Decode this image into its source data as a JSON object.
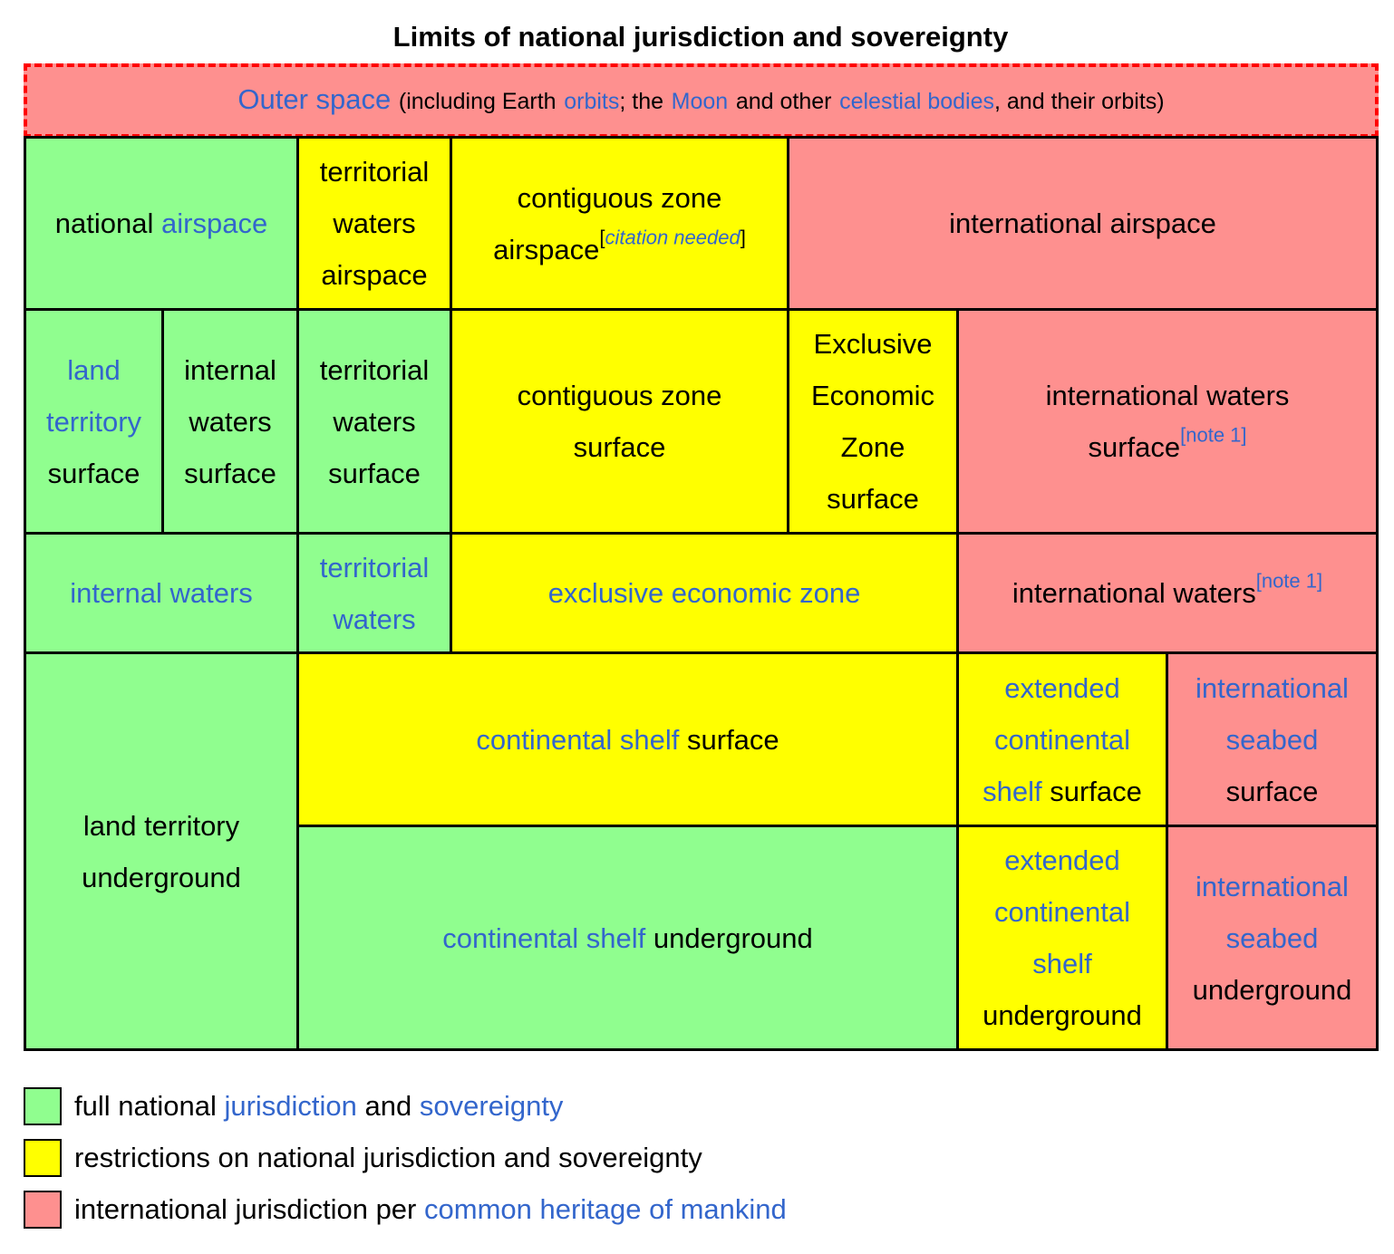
{
  "title": "Limits of national jurisdiction and sovereignty",
  "colors": {
    "full": "#90fe8f",
    "restricted": "#ffff00",
    "international": "#fe908f",
    "link": "#3366cc",
    "outer_border": "#ff0000"
  },
  "outer_space": {
    "link1": "Outer space",
    "t1": "(including Earth",
    "link2": "orbits",
    "t2": "; the",
    "link3": "Moon",
    "t3": "and other",
    "link4": "celestial bodies",
    "t4": ", and their orbits)"
  },
  "row_air": {
    "national_airspace": {
      "plain": "national",
      "link": "airspace"
    },
    "territorial_waters_airspace": {
      "line1": "territorial",
      "line2": "waters",
      "line3": "airspace"
    },
    "contiguous_zone_airspace": {
      "line1": "contiguous zone",
      "line2": "airspace",
      "sup_open": "[",
      "sup_link": "citation needed",
      "sup_close": "]"
    },
    "international_airspace": "international airspace"
  },
  "row_surface": {
    "land_territory_surface": {
      "link1": "land",
      "link2": "territory",
      "plain": "surface"
    },
    "internal_waters_surface": {
      "line1": "internal",
      "line2": "waters",
      "line3": "surface"
    },
    "territorial_waters_surface": {
      "line1": "territorial",
      "line2": "waters",
      "line3": "surface"
    },
    "contiguous_zone_surface": {
      "line1": "contiguous zone",
      "line2": "surface"
    },
    "eez_surface": {
      "line1": "Exclusive",
      "line2": "Economic",
      "line3": "Zone",
      "line4": "surface"
    },
    "international_waters_surface": {
      "line1": "international waters",
      "line2": "surface",
      "note": "[note 1]"
    }
  },
  "row_water": {
    "internal_waters": "internal waters",
    "territorial_waters": {
      "line1": "territorial",
      "line2": "waters"
    },
    "exclusive_economic_zone": "exclusive economic zone",
    "international_waters": {
      "text": "international waters",
      "note": "[note 1]"
    }
  },
  "row_seabed": {
    "land_territory_underground": {
      "line1": "land territory",
      "line2": "underground"
    },
    "continental_shelf_surface": {
      "link": "continental shelf",
      "plain": "surface"
    },
    "extended_shelf_surface": {
      "link1": "extended",
      "link2": "continental",
      "link3": "shelf",
      "plain": "surface"
    },
    "international_seabed_surface": {
      "link1": "international",
      "link2": "seabed",
      "plain": "surface"
    },
    "continental_shelf_underground": {
      "link": "continental shelf",
      "plain": "underground"
    },
    "extended_shelf_underground": {
      "link1": "extended",
      "link2": "continental",
      "link3": "shelf",
      "plain": "underground"
    },
    "international_seabed_underground": {
      "link1": "international",
      "link2": "seabed",
      "plain": "underground"
    }
  },
  "legend": [
    {
      "t1": "full national",
      "link1": "jurisdiction",
      "t2": "and",
      "link2": "sovereignty"
    },
    {
      "t1": "restrictions on national jurisdiction and sovereignty"
    },
    {
      "t1": "international jurisdiction per",
      "link1": "common heritage of mankind"
    }
  ]
}
